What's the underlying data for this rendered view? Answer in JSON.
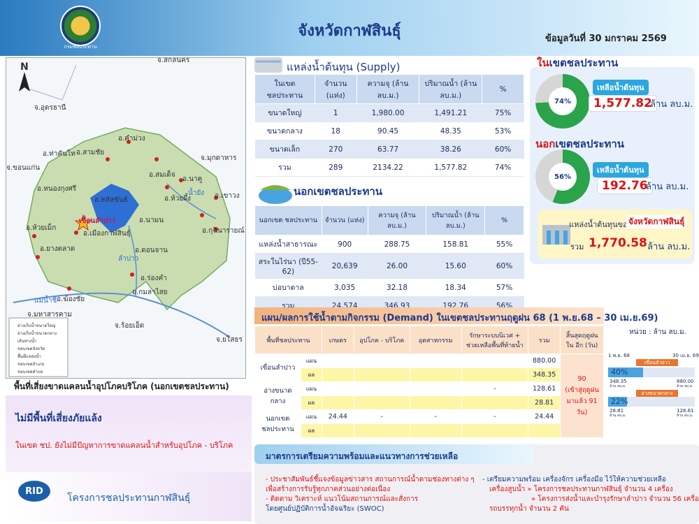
{
  "header": {
    "title": "จังหวัดกาฬสินธุ์",
    "date": "ข้อมูลวันที่ 30 มกราคม 2569",
    "logo_text": "กรมชลประทาน"
  },
  "map": {
    "north": "N",
    "labels": [
      "จ.สกลนคร",
      "จ.อุดรธานี",
      "จ.มุกดาหาร",
      "จ.ขอนแก่น",
      "จ.มหาสารคาม",
      "จ.ร้อยเอ็ด",
      "จ.ยโสธร",
      "อ.คำม่วง",
      "อ.สามชัย",
      "อ.ท่าคันโท",
      "อ.หนองกุงศรี",
      "อ.สมเด็จ",
      "อ.สหัสขันธ์",
      "อ.ห้วยผึ้ง",
      "อ.นาคู",
      "อ.เขาวง",
      "อ.ห้วยเม็ก",
      "อ.นามน",
      "อ.เมืองกาฬสินธุ์",
      "อ.กุฉินารายณ์",
      "อ.ยางตลาด",
      "อ.ดอนจาน",
      "อ.ร่องคำ",
      "อ.กมลาไสย",
      "อ.ฆ้องชัย",
      "เขื่อนลำปาว",
      "ลำปาว",
      "น้ำยัง",
      "แม่น้ำชี"
    ],
    "legend": [
      "อ่างเก็บน้ำขนาดใหญ่",
      "อ่างเก็บน้ำขนาดกลาง",
      "เส้นทางน้ำ",
      "ขอบเขตจังหวัด",
      "พื้นที่แหล่งน้ำ",
      "ขอบเขตอำเภอ",
      "ขอบเขตตำบล"
    ]
  },
  "supply": {
    "title": "แหล่งน้ำต้นทุน (Supply)",
    "headers": [
      "ในเขต ชลประทาน",
      "จำนวน (แห่ง)",
      "ความจุ (ล้าน ลบ.ม.)",
      "ปริมาณน้ำ (ล้าน ลบ.ม.)",
      "%"
    ],
    "rows": [
      [
        "ขนาดใหญ่",
        "1",
        "1,980.00",
        "1,491.21",
        "75%"
      ],
      [
        "ขนาดกลาง",
        "18",
        "90.45",
        "48.35",
        "53%"
      ],
      [
        "ขนาดเล็ก",
        "270",
        "63.77",
        "38.26",
        "60%"
      ],
      [
        "รวม",
        "289",
        "2134.22",
        "1,577.82",
        "74%"
      ]
    ]
  },
  "outside": {
    "title": "นอกเขตชลประทาน",
    "headers": [
      "นอกเขต ชลประทาน",
      "จำนวน (แห่ง)",
      "ความจุ (ล้าน ลบ.ม.)",
      "ปริมาณน้ำ (ล้าน ลบ.ม.)",
      "%"
    ],
    "rows": [
      [
        "แหล่งน้ำสาธารณะ",
        "900",
        "288.75",
        "158.81",
        "55%"
      ],
      [
        "สระในไร่นา (ปี55-62)",
        "20,639",
        "26.00",
        "15.60",
        "60%"
      ],
      [
        "บ่อบาดาล",
        "3,035",
        "32.18",
        "18.34",
        "57%"
      ],
      [
        "รวม",
        "24,574",
        "346.93",
        "192.76",
        "56%"
      ]
    ]
  },
  "right": {
    "in_title_a": "ใน",
    "in_title_b": "เขตชลประทาน",
    "in_pct": "74%",
    "in_pct_value": 74,
    "in_pill": "เหลือน้ำต้นทุน",
    "in_value": "1,577.82",
    "out_title_a": "นอก",
    "out_title_b": "เขตชลประทาน",
    "out_pct": "56%",
    "out_pct_value": 56,
    "out_pill": "เหลือน้ำต้นทุน",
    "out_value": "192.76",
    "unit": "ล้าน ลบ.ม.",
    "total_label": "แหล่งน้ำต้นทุนของ",
    "total_province": "จังหวัดกาฬสินธุ์",
    "total_sum_label": "รวม",
    "total_value": "1,770.58",
    "colors": {
      "green": "#2aa34a",
      "grey": "#d6d6d6",
      "red": "#d11111"
    }
  },
  "demand": {
    "title": "แผน/ผลการใช้น้ำตามกิจกรรม (Demand) ในเขตชลประทานฤดูฝน 68 (1 พ.ย.68 – 30 เม.ย.69)",
    "unit_note": "หน่วย : ล้าน ลบ.ม.",
    "headers": [
      "พื้นที่ชลประทาน",
      "",
      "เกษตร",
      "อุปโภค - บริโภค",
      "อุตสาหกรรม",
      "รักษาระบบนิเวศ + ช่วยเหลือพื้นที่ท้ายน้ำ",
      "รวม",
      "สิ้นสุดฤดูฝนใน อีก (วัน)"
    ],
    "rows": [
      {
        "name": "เขื่อนลำปาว",
        "plan": [
          "",
          "",
          "",
          "",
          "880.00"
        ],
        "result": [
          "",
          "",
          "",
          "",
          "348.35"
        ]
      },
      {
        "name": "อ่างขนาดกลาง",
        "plan": [
          "",
          "",
          "",
          "-",
          "128.61"
        ],
        "result": [
          "",
          "",
          "",
          "",
          "28.81"
        ]
      },
      {
        "name": "นอกเขต ชลประทาน",
        "plan": [
          "24.44",
          "-",
          "-",
          "-",
          "24.44"
        ],
        "result": [
          "",
          "",
          "",
          "",
          ""
        ]
      }
    ],
    "plan_label": "แผน",
    "result_label": "ผล",
    "days_a": "90",
    "days_b": "(เข้าสู่ฤดูฝน",
    "days_c": "มาแล้ว 91 วัน)"
  },
  "progress": {
    "start": "1 พ.ย. 68",
    "end": "30 เม.ย. 69",
    "items": [
      {
        "label": "เขื่อนลำปาว",
        "pct": "40%",
        "pct_value": 40,
        "used": "348.35",
        "used_unit": "ล้าน ลบ.ม.",
        "plan": "880.00",
        "plan_unit": "ล้าน ลบ.ม."
      },
      {
        "label": "อ่างขนาดกลาง",
        "pct": "22%",
        "pct_value": 22,
        "used": "28.81",
        "used_unit": "ล้าน ลบ.ม.",
        "plan": "128.61",
        "plan_unit": "ล้าน ลบ.ม."
      }
    ]
  },
  "risk": {
    "title": "พื้นที่เสี่ยงขาดแคลนน้ำอุปโภคบริโภค (นอกเขตชลประทาน)",
    "headline": "ไม่มีพื้นที่เสี่ยงภัยแล้ง",
    "note": "ในเขต ชป. ยังไม่มีปัญหาการขาดแคลนน้ำสำหรับอุปโภค - บริโภค",
    "org": "โครงการชลประทานกาฬสินธุ์",
    "rid": "RID"
  },
  "measures": {
    "title": "มาตรการเตรียมความพร้อมและแนวทางการช่วยเหลือ",
    "left": [
      "- ประชาสัมพันธ์ชี้แจงข้อมูลข่าวสาร สถานการณ์น้ำตามช่องทางต่าง ๆ",
      "  เพื่อสร้างการรับรู้ทุกภาคส่วนอย่างต่อเนื่อง",
      "- ติดตาม วิเคราะห์ แนวโน้มสถานการณ์และสั่งการ",
      "  โดยศูนย์ปฏิบัติการน้ำอัจฉริยะ (SWOC)"
    ],
    "right": [
      "- เตรียมความพร้อม เครื่องจักร เครื่องมือ ไว้ให้ความช่วยเหลือ",
      "เครื่องสูบน้ำ  » โครงการชลประทานกาฬสินธุ์ จำนวน 4 เครื่อง",
      "» โครงการส่งน้ำและบำรุงรักษาลำปาว จำนวน 56 เครื่อง",
      "รถบรรทุกน้ำ  จำนวน 2 คัน"
    ]
  }
}
